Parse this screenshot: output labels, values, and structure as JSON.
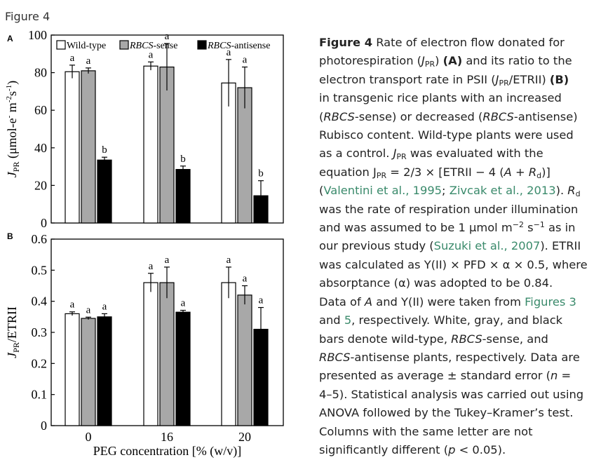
{
  "figure_label": "Figure 4",
  "chart_data": [
    {
      "panel": "A",
      "type": "bar",
      "ylabel": "J_PR (μmol-e⁻ m⁻²s⁻¹)",
      "ylabel_main": "J",
      "ylabel_sub": "PR",
      "ylabel_rest": " (μmol-e",
      "ylabel_sup1": "-",
      "ylabel_mid": " m",
      "ylabel_sup2": "-2",
      "ylabel_mid2": "s",
      "ylabel_sup3": "-1",
      "ylabel_end": ")",
      "ylim": [
        0,
        100
      ],
      "yticks": [
        "0",
        "20",
        "40",
        "60",
        "80",
        "100"
      ],
      "categories": [
        "0",
        "16",
        "20"
      ],
      "legend": [
        "Wild-type",
        "RBCS-sense",
        "RBCS-antisense"
      ],
      "legend_placement": "top",
      "series": [
        {
          "name": "Wild-type",
          "values": [
            80.5,
            83.5,
            74.5
          ],
          "errors": [
            3.5,
            2.2,
            12.5
          ],
          "letters": [
            "a",
            "a",
            "a"
          ]
        },
        {
          "name": "RBCS-sense",
          "values": [
            81,
            83,
            72
          ],
          "errors": [
            1.5,
            12.5,
            11
          ],
          "letters": [
            "a",
            "a",
            "a"
          ]
        },
        {
          "name": "RBCS-antisense",
          "values": [
            33.5,
            28.5,
            14.5
          ],
          "errors": [
            1.5,
            1.8,
            8
          ],
          "letters": [
            "b",
            "b",
            "b"
          ]
        }
      ]
    },
    {
      "panel": "B",
      "type": "bar",
      "ylabel": "J_PR/ETRII",
      "ylabel_main": "J",
      "ylabel_sub": "PR",
      "ylabel_rest": "/ETRII",
      "ylim": [
        0,
        0.6
      ],
      "yticks": [
        "0",
        "0.1",
        "0.2",
        "0.3",
        "0.4",
        "0.5",
        "0.6"
      ],
      "categories": [
        "0",
        "16",
        "20"
      ],
      "xlabel": "PEG concentration [% (w/v)]",
      "series": [
        {
          "name": "Wild-type",
          "values": [
            0.36,
            0.46,
            0.46
          ],
          "errors": [
            0.006,
            0.03,
            0.05
          ],
          "letters": [
            "a",
            "a",
            "a"
          ]
        },
        {
          "name": "RBCS-sense",
          "values": [
            0.345,
            0.46,
            0.42
          ],
          "errors": [
            0.004,
            0.05,
            0.03
          ],
          "letters": [
            "a",
            "a",
            "a"
          ]
        },
        {
          "name": "RBCS-antisense",
          "values": [
            0.35,
            0.365,
            0.31
          ],
          "errors": [
            0.01,
            0.006,
            0.07
          ],
          "letters": [
            "a",
            "a",
            "a"
          ]
        }
      ]
    }
  ],
  "colors": {
    "wild_type": "#ffffff",
    "sense": "#a8a8a8",
    "antisense": "#000000",
    "link": "#3a8a6b"
  },
  "caption": {
    "l1_title": "Figure 4",
    "l1_rest": " Rate of electron flow donated for",
    "l2a": "photorespiration (",
    "l2_J": "J",
    "l2_sub": "PR",
    "l2b": ") ",
    "l2_A": "(A)",
    "l2c": " and its ratio to the",
    "l3": "electron transport rate in PSII (",
    "l3_J": "J",
    "l3_sub": "PR",
    "l3b": "/ETRII) ",
    "l3_B": "(B)",
    "l4a": "in transgenic rice plants with an increased",
    "l5a": "(",
    "l5_rbcs1": "RBCS",
    "l5b": "-sense) or decreased (",
    "l5_rbcs2": "RBCS",
    "l5c": "-antisense)",
    "l6": "Rubisco content. Wild-type plants were used",
    "l7a": "as a control. ",
    "l7_J": "J",
    "l7_sub": "PR",
    "l7b": " was evaluated with the",
    "l8a": "equation J",
    "l8_sub": "PR",
    "l8b": " = 2/3 × [ETRII − 4 (",
    "l8_A": "A",
    "l8c": " + ",
    "l8_R": "R",
    "l8_Rsub": "d",
    "l8d": ")]",
    "l9a": "(",
    "l9_link1": "Valentini et al., 1995",
    "l9b": "; ",
    "l9_link2": "Zivcak et al., 2013",
    "l9c": "). ",
    "l9_R": "R",
    "l9_Rsub": "d",
    "l10": "was the rate of respiration under illumination",
    "l11a": "and was assumed to be 1 μmol m",
    "l11_sup1": "−2",
    "l11b": " s",
    "l11_sup2": "−1",
    "l11c": " as in",
    "l12a": "our previous study (",
    "l12_link": "Suzuki et al., 2007",
    "l12b": "). ETRII",
    "l13": "was calculated as Y(II) × PFD × α × 0.5, where",
    "l14": "absorptance (α) was adopted to be 0.84.",
    "l15a": "Data of ",
    "l15_A": "A",
    "l15b": " and Y(II) were taken from ",
    "l15_link": "Figures 3",
    "l16a": "and ",
    "l16_link": "5",
    "l16b": ", respectively. White, gray, and black",
    "l17a": "bars denote wild-type, ",
    "l17_rbcs": "RBCS",
    "l17b": "-sense, and",
    "l18_rbcs": "RBCS",
    "l18b": "-antisense plants, respectively. Data are",
    "l19a": "presented as average ± standard error (",
    "l19_n": "n",
    "l19b": " =",
    "l20": "4–5). Statistical analysis was carried out using",
    "l21": "ANOVA followed by the Tukey–Kramer’s test.",
    "l22": "Columns with the same letter are not",
    "l23a": "significantly different (",
    "l23_p": "p",
    "l23b": " < 0.05)."
  }
}
